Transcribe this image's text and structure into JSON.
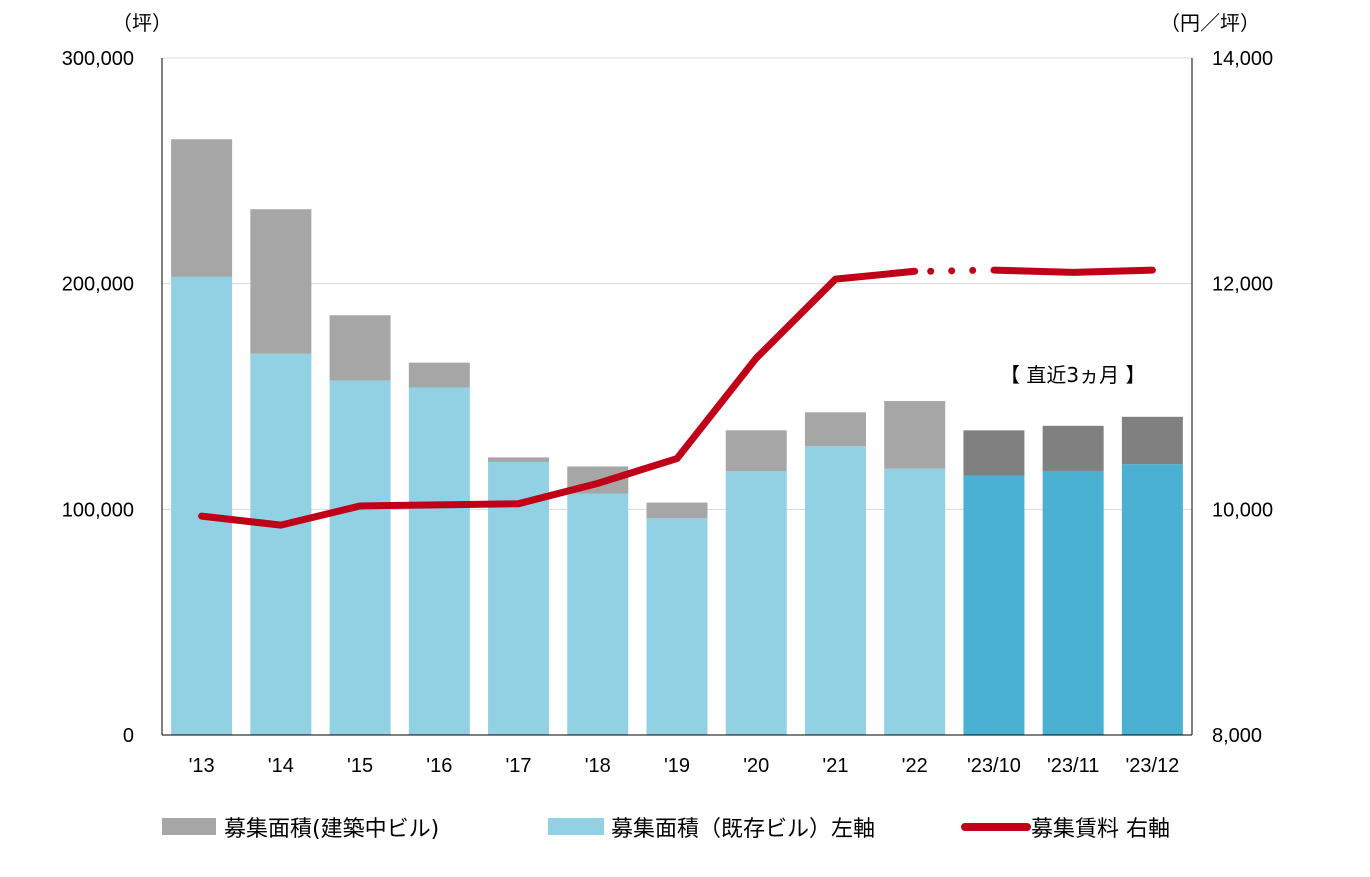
{
  "chart_data": {
    "type": "bar",
    "categories": [
      "'13",
      "'14",
      "'15",
      "'16",
      "'17",
      "'18",
      "'19",
      "'20",
      "'21",
      "'22",
      "'23/10",
      "'23/11",
      "'23/12"
    ],
    "series": [
      {
        "name": "募集面積（既存ビル）左軸",
        "type": "bar",
        "axis": "left",
        "stack": "area",
        "values": [
          203000,
          169000,
          157000,
          154000,
          121000,
          107000,
          96000,
          117000,
          128000,
          118000,
          115000,
          117000,
          120000
        ],
        "colors": [
          "#92d0e3",
          "#92d0e3",
          "#92d0e3",
          "#92d0e3",
          "#92d0e3",
          "#92d0e3",
          "#92d0e3",
          "#92d0e3",
          "#92d0e3",
          "#92d0e3",
          "#4ab1d3",
          "#4ab1d3",
          "#4ab1d3"
        ]
      },
      {
        "name": "募集面積(建築中ビル)",
        "type": "bar",
        "axis": "left",
        "stack": "area",
        "values": [
          61000,
          64000,
          29000,
          11000,
          2000,
          12000,
          7000,
          18000,
          15000,
          30000,
          20000,
          20000,
          21000
        ],
        "colors": [
          "#a6a6a6",
          "#a6a6a6",
          "#a6a6a6",
          "#a6a6a6",
          "#a6a6a6",
          "#a6a6a6",
          "#a6a6a6",
          "#a6a6a6",
          "#a6a6a6",
          "#a6a6a6",
          "#808080",
          "#808080",
          "#808080"
        ]
      },
      {
        "name": "募集賃料 右軸",
        "type": "line",
        "axis": "right",
        "color": "#c00018",
        "values": [
          9940,
          9860,
          10030,
          10040,
          10050,
          10230,
          10450,
          11340,
          12040,
          12110,
          12120,
          12100,
          12120
        ],
        "dotted_gap_after_index": 9
      }
    ],
    "left_axis": {
      "unit": "（坪）",
      "min": 0,
      "max": 300000,
      "ticks": [
        0,
        100000,
        200000,
        300000
      ],
      "tick_labels": [
        "0",
        "100,000",
        "200,000",
        "300,000"
      ]
    },
    "right_axis": {
      "unit": "（円／坪）",
      "min": 8000,
      "max": 14000,
      "ticks": [
        8000,
        10000,
        12000,
        14000
      ],
      "tick_labels": [
        "8,000",
        "10,000",
        "12,000",
        "14,000"
      ]
    },
    "annotation": "【 直近3ヵ月 】",
    "grid": true,
    "legend_position": "bottom",
    "legend": [
      {
        "label": "募集面積(建築中ビル)",
        "color": "#a6a6a6",
        "kind": "box"
      },
      {
        "label": "募集面積（既存ビル）左軸",
        "color": "#92d0e3",
        "kind": "box"
      },
      {
        "label": "募集賃料 右軸",
        "color": "#c00018",
        "kind": "line"
      }
    ]
  }
}
